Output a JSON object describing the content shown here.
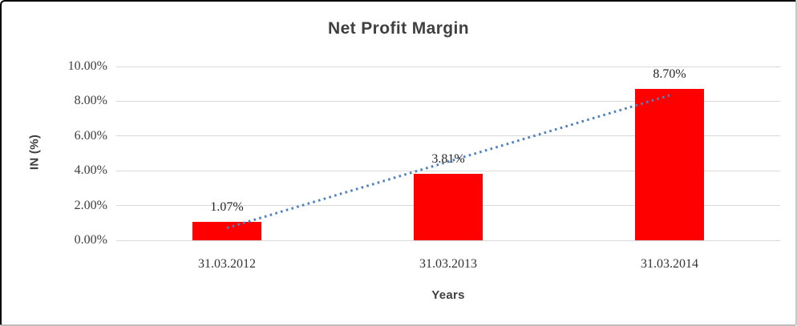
{
  "chart": {
    "title": "Net Profit Margin",
    "y_axis_title": "IN (%)",
    "x_axis_title": "Years"
  },
  "chart_data": {
    "type": "bar",
    "title": "Net Profit Margin",
    "xlabel": "Years",
    "ylabel": "IN (%)",
    "categories": [
      "31.03.2012",
      "31.03.2013",
      "31.03.2014"
    ],
    "values": [
      1.07,
      3.81,
      8.7
    ],
    "data_labels": [
      "1.07%",
      "3.81%",
      "8.70%"
    ],
    "y_ticks": [
      "0.00%",
      "2.00%",
      "4.00%",
      "6.00%",
      "8.00%",
      "10.00%"
    ],
    "ylim": [
      0,
      10
    ],
    "grid": true,
    "legend": "none",
    "bar_color": "#ff0000",
    "gridline_color": "#d9d9d9",
    "title_color": "#404040",
    "trendline": {
      "type": "linear",
      "style": "dotted",
      "color": "#4f81bd",
      "endpoints_pct": [
        0.71,
        8.34
      ]
    }
  }
}
